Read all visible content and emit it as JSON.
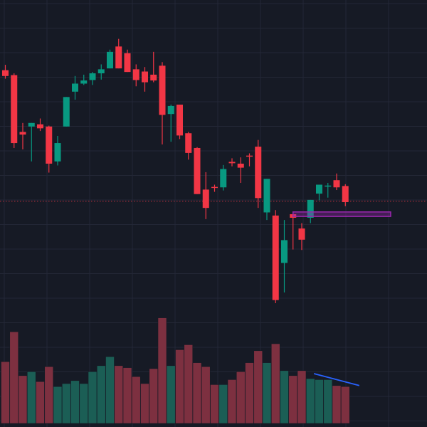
{
  "theme": {
    "background": "#161a25",
    "grid": "#232736",
    "up_color": "#089981",
    "down_color": "#f23645",
    "up_volume_color": "#1b5e55",
    "down_volume_color": "#7d3040",
    "price_line_color": "#f23645",
    "zone_color": "#9c27b0",
    "trendline_color": "#2962ff"
  },
  "chart_data": {
    "type": "candlestick",
    "grid": true,
    "price_range": [
      40,
      114
    ],
    "volume_range": [
      0,
      100
    ],
    "last_price_line": 69.8,
    "candles": [
      {
        "o": 99.1,
        "h": 100.3,
        "l": 97.2,
        "c": 97.8,
        "v": 62
      },
      {
        "o": 98.0,
        "h": 98.4,
        "l": 81.7,
        "c": 82.8,
        "v": 92
      },
      {
        "o": 85.3,
        "h": 87.3,
        "l": 81.4,
        "c": 84.7,
        "v": 48
      },
      {
        "o": 86.5,
        "h": 87.3,
        "l": 78.7,
        "c": 87.3,
        "v": 52
      },
      {
        "o": 87.0,
        "h": 88.3,
        "l": 85.5,
        "c": 86.1,
        "v": 42
      },
      {
        "o": 86.5,
        "h": 86.7,
        "l": 76.2,
        "c": 78.2,
        "v": 57
      },
      {
        "o": 78.7,
        "h": 84.4,
        "l": 77.8,
        "c": 82.8,
        "v": 37
      },
      {
        "o": 86.5,
        "h": 93.1,
        "l": 86.5,
        "c": 93.1,
        "v": 40
      },
      {
        "o": 94.3,
        "h": 97.8,
        "l": 92.5,
        "c": 96.1,
        "v": 43
      },
      {
        "o": 96.1,
        "h": 98.1,
        "l": 95.8,
        "c": 96.8,
        "v": 40
      },
      {
        "o": 96.9,
        "h": 98.7,
        "l": 95.8,
        "c": 98.4,
        "v": 52
      },
      {
        "o": 98.4,
        "h": 100.4,
        "l": 97.0,
        "c": 99.3,
        "v": 58
      },
      {
        "o": 99.5,
        "h": 103.7,
        "l": 99.5,
        "c": 103.2,
        "v": 67
      },
      {
        "o": 104.4,
        "h": 106.1,
        "l": 99.5,
        "c": 99.5,
        "v": 58
      },
      {
        "o": 102.9,
        "h": 103.7,
        "l": 98.7,
        "c": 98.7,
        "v": 56
      },
      {
        "o": 99.3,
        "h": 100.4,
        "l": 95.5,
        "c": 96.9,
        "v": 47
      },
      {
        "o": 98.8,
        "h": 99.8,
        "l": 94.3,
        "c": 96.4,
        "v": 40
      },
      {
        "o": 98.1,
        "h": 103.2,
        "l": 96.4,
        "c": 96.8,
        "v": 55
      },
      {
        "o": 100.1,
        "h": 100.9,
        "l": 82.5,
        "c": 89.1,
        "v": 106
      },
      {
        "o": 89.3,
        "h": 91.4,
        "l": 83.1,
        "c": 91.1,
        "v": 58
      },
      {
        "o": 91.4,
        "h": 91.4,
        "l": 83.7,
        "c": 84.5,
        "v": 74
      },
      {
        "o": 85.0,
        "h": 85.3,
        "l": 79.1,
        "c": 80.6,
        "v": 79
      },
      {
        "o": 81.7,
        "h": 81.9,
        "l": 71.4,
        "c": 71.4,
        "v": 61
      },
      {
        "o": 72.4,
        "h": 76.3,
        "l": 65.8,
        "c": 68.3,
        "v": 57
      },
      {
        "o": 73.0,
        "h": 73.5,
        "l": 71.9,
        "c": 72.9,
        "v": 39
      },
      {
        "o": 72.9,
        "h": 77.9,
        "l": 72.2,
        "c": 77.0,
        "v": 39
      },
      {
        "o": 78.6,
        "h": 79.4,
        "l": 77.6,
        "c": 78.3,
        "v": 44
      },
      {
        "o": 78.2,
        "h": 79.6,
        "l": 73.9,
        "c": 77.3,
        "v": 52
      },
      {
        "o": 80.0,
        "h": 80.5,
        "l": 77.6,
        "c": 79.8,
        "v": 61
      },
      {
        "o": 82.0,
        "h": 83.5,
        "l": 68.3,
        "c": 70.5,
        "v": 73
      },
      {
        "o": 67.3,
        "h": 74.8,
        "l": 65.6,
        "c": 74.8,
        "v": 61
      },
      {
        "o": 66.6,
        "h": 67.8,
        "l": 47.0,
        "c": 47.7,
        "v": 80
      },
      {
        "o": 56.0,
        "h": 65.6,
        "l": 49.4,
        "c": 61.1,
        "v": 53
      },
      {
        "o": 66.9,
        "h": 67.5,
        "l": 59.0,
        "c": 66.1,
        "v": 48
      },
      {
        "o": 63.7,
        "h": 64.9,
        "l": 58.9,
        "c": 61.2,
        "v": 53
      },
      {
        "o": 66.1,
        "h": 70.1,
        "l": 64.9,
        "c": 70.1,
        "v": 45
      },
      {
        "o": 71.5,
        "h": 73.5,
        "l": 70.0,
        "c": 73.5,
        "v": 44
      },
      {
        "o": 73.3,
        "h": 73.9,
        "l": 70.6,
        "c": 73.3,
        "v": 44
      },
      {
        "o": 74.5,
        "h": 76.0,
        "l": 72.3,
        "c": 72.9,
        "v": 38
      },
      {
        "o": 73.2,
        "h": 73.6,
        "l": 68.7,
        "c": 69.6,
        "v": 37
      }
    ],
    "zone": {
      "from_index": 33,
      "to_index": 44.2,
      "top": 67.4,
      "bottom": 66.4
    },
    "volume_trendline": {
      "from_index": 35.4,
      "from_volume": 50,
      "to_index": 40.6,
      "to_volume": 38
    }
  }
}
